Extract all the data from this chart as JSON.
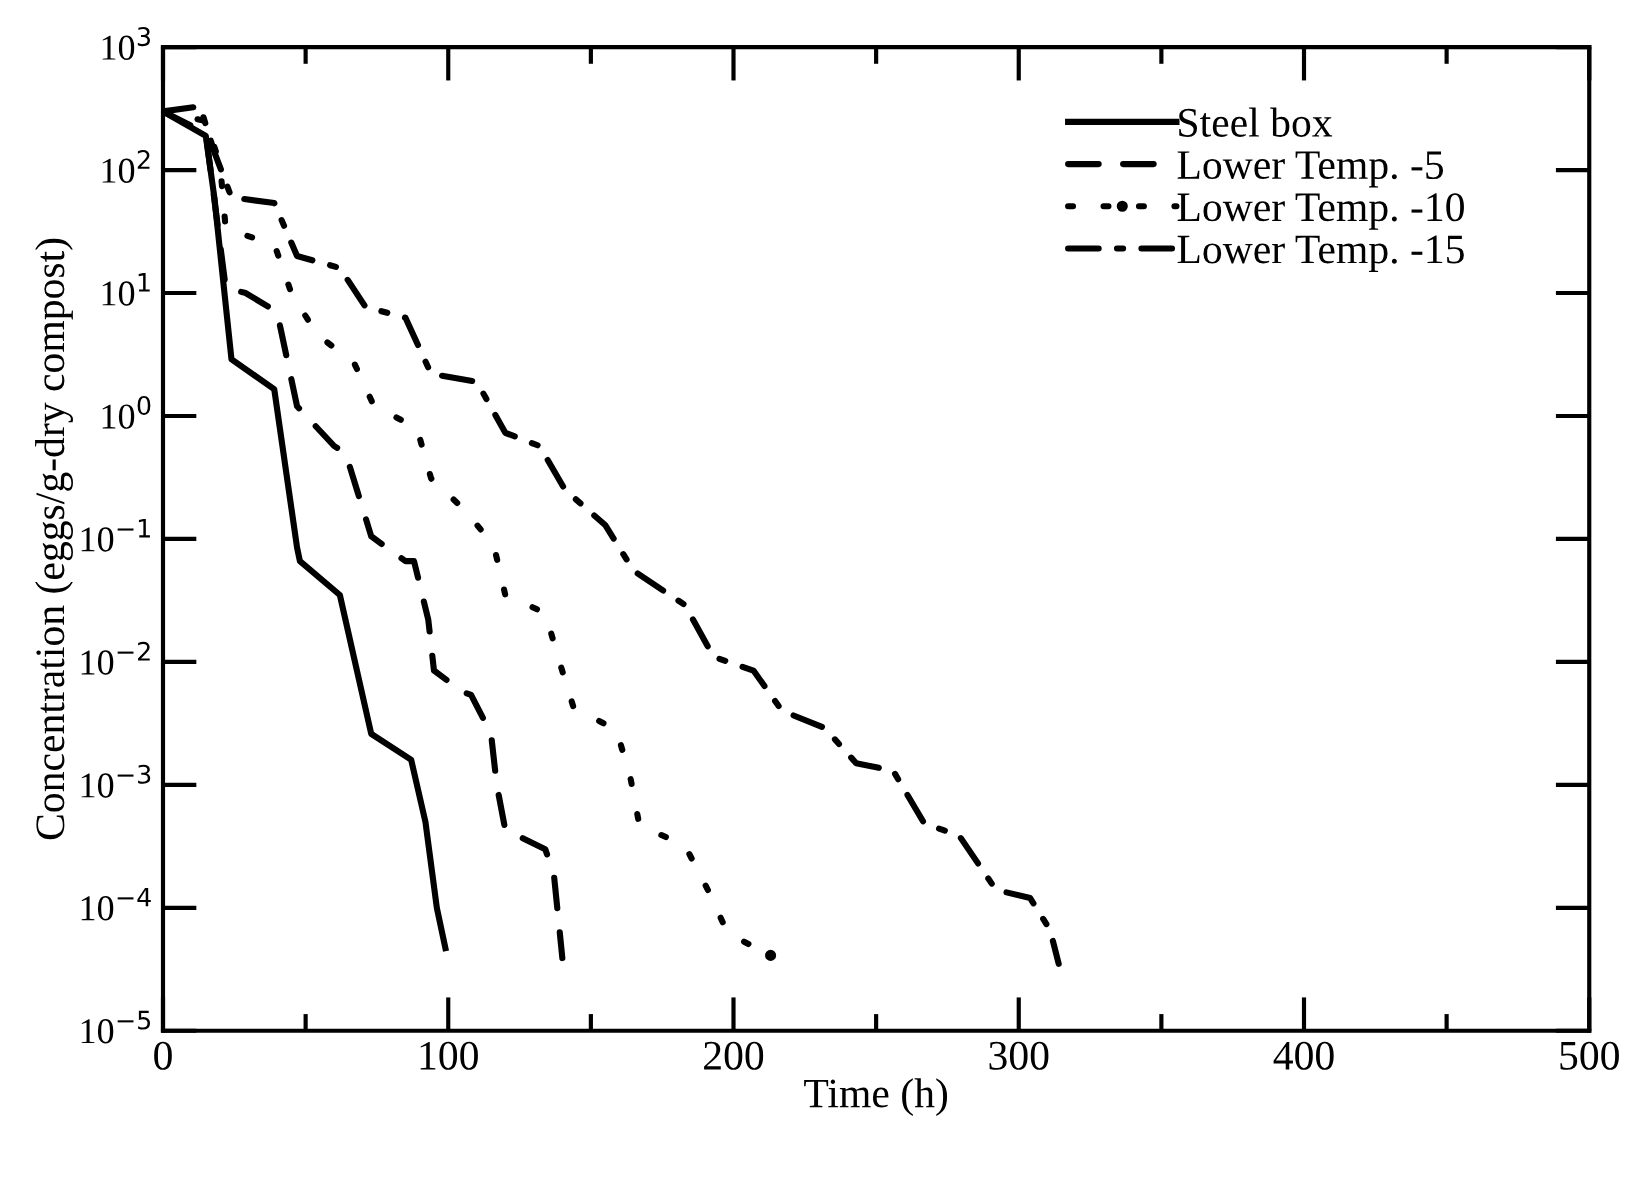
{
  "chart_data": {
    "type": "line",
    "xlabel": "Time (h)",
    "ylabel": "Concentration (eggs/g-dry compost)",
    "log": "y",
    "xlim": [
      0,
      500
    ],
    "ylim": [
      1e-05,
      1000
    ],
    "xticks": [
      0,
      {
        "value": 50,
        "label": null
      },
      100,
      {
        "value": 150,
        "label": null
      },
      200,
      {
        "value": 250,
        "label": null
      },
      300,
      {
        "value": 350,
        "label": null
      },
      400,
      {
        "value": 450,
        "label": null
      },
      500
    ],
    "yticks": [
      {
        "value": 1e-05,
        "label": "10$^{−5}$"
      },
      {
        "value": 0.0001,
        "label": "10$^{−4}$"
      },
      {
        "value": 0.001,
        "label": "10$^{−3}$"
      },
      {
        "value": 0.01,
        "label": "10$^{−2}$"
      },
      {
        "value": 0.1,
        "label": "10$^{−1}$"
      },
      {
        "value": 1,
        "label": "10$^{0}$"
      },
      {
        "value": 10,
        "label": "10$^{1}$"
      },
      {
        "value": 100,
        "label": "10$^{2}$"
      },
      {
        "value": 1000,
        "label": "10$^{3}$"
      }
    ],
    "grid": false,
    "legend": "top right",
    "marker": "none",
    "series": [
      {
        "name": "Steel box",
        "color": "#000000",
        "line_style": "solid",
        "x": [
          0,
          15,
          18,
          24,
          39,
          47,
          48,
          62,
          73,
          87,
          92,
          96,
          99
        ],
        "values": [
          300,
          190,
          60,
          2.9,
          1.65,
          0.085,
          0.066,
          0.035,
          0.0026,
          0.0016,
          0.0005,
          0.0001,
          4.7e-05
        ]
      },
      {
        "name": "Lower Temp. -5",
        "color": "#000000",
        "line_style": "dashed",
        "x": [
          0,
          15,
          22,
          29,
          40,
          47,
          60,
          64,
          68,
          73,
          85,
          88,
          93,
          95,
          105,
          108,
          115,
          117,
          120,
          134,
          137,
          140
        ],
        "values": [
          300,
          200,
          11,
          10,
          7,
          1.2,
          0.57,
          0.5,
          0.25,
          0.105,
          0.066,
          0.066,
          0.022,
          0.0085,
          0.0057,
          0.0054,
          0.0026,
          0.001,
          0.00043,
          0.0003,
          0.00019,
          3.9e-05
        ]
      },
      {
        "name": "Lower Temp. -10",
        "color": "#000000",
        "line_style": "dotted",
        "x": [
          0,
          15,
          20,
          22,
          39,
          45,
          54,
          67,
          74,
          89,
          94,
          106,
          116,
          120,
          134,
          139,
          144,
          159,
          164,
          167,
          183,
          191,
          198,
          213
        ],
        "values": [
          300,
          250,
          112,
          33,
          25,
          10,
          4.6,
          2.7,
          1.2,
          0.8,
          0.31,
          0.17,
          0.088,
          0.035,
          0.025,
          0.01,
          0.0042,
          0.0028,
          0.0011,
          0.00047,
          0.00032,
          0.00014,
          6.2e-05,
          4.1e-05
        ]
      },
      {
        "name": "Lower Temp. -15",
        "color": "#000000",
        "line_style": "dashdot",
        "x": [
          0,
          13,
          18,
          24,
          39,
          47,
          62,
          71,
          85,
          94,
          110,
          120,
          132,
          141,
          155,
          165,
          183,
          193,
          207,
          217,
          232,
          243,
          256,
          267,
          279,
          292,
          304,
          311,
          314
        ],
        "values": [
          300,
          330,
          140,
          60,
          54,
          20,
          16,
          7.7,
          6.3,
          2.2,
          1.9,
          0.73,
          0.57,
          0.25,
          0.13,
          0.055,
          0.029,
          0.011,
          0.0085,
          0.004,
          0.0029,
          0.0015,
          0.0013,
          0.00048,
          0.00039,
          0.00014,
          0.00012,
          6.6e-05,
          3.5e-05
        ]
      }
    ]
  }
}
